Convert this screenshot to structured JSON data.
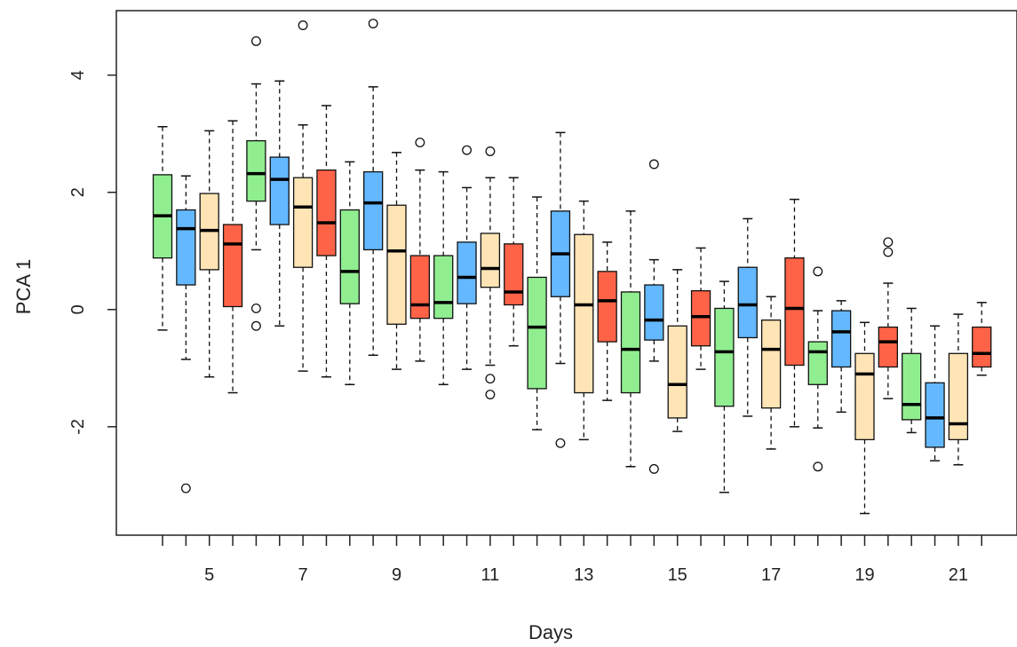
{
  "chart_data": {
    "type": "box",
    "xlabel": "Days",
    "ylabel": "PCA 1",
    "ylim": [
      -3.85,
      5.1
    ],
    "y_ticks": [
      -2,
      0,
      2,
      4
    ],
    "x_tick_labels": [
      "5",
      "7",
      "9",
      "11",
      "13",
      "15",
      "17",
      "19",
      "21"
    ],
    "x_label_positions": [
      2,
      6,
      10,
      14,
      18,
      22,
      26,
      30,
      34
    ],
    "grid": false,
    "legend": "none",
    "palette": {
      "green": "#90EE90",
      "blue": "#63B8FF",
      "wheat": "#FFE4B5",
      "red": "#FF6347"
    },
    "boxes": [
      {
        "color": "green",
        "whisker_low": -0.35,
        "q1": 0.88,
        "median": 1.6,
        "q3": 2.3,
        "whisker_high": 3.12,
        "outliers": []
      },
      {
        "color": "blue",
        "whisker_low": -0.85,
        "q1": 0.42,
        "median": 1.38,
        "q3": 1.7,
        "whisker_high": 2.28,
        "outliers": [
          -3.05
        ]
      },
      {
        "color": "wheat",
        "whisker_low": -1.15,
        "q1": 0.68,
        "median": 1.35,
        "q3": 1.98,
        "whisker_high": 3.05,
        "outliers": []
      },
      {
        "color": "red",
        "whisker_low": -1.42,
        "q1": 0.05,
        "median": 1.12,
        "q3": 1.45,
        "whisker_high": 3.22,
        "outliers": []
      },
      {
        "color": "green",
        "whisker_low": 1.02,
        "q1": 1.85,
        "median": 2.32,
        "q3": 2.88,
        "whisker_high": 3.85,
        "outliers": [
          4.58,
          0.02,
          -0.28
        ]
      },
      {
        "color": "blue",
        "whisker_low": -0.28,
        "q1": 1.45,
        "median": 2.22,
        "q3": 2.6,
        "whisker_high": 3.9,
        "outliers": []
      },
      {
        "color": "wheat",
        "whisker_low": -1.05,
        "q1": 0.72,
        "median": 1.75,
        "q3": 2.25,
        "whisker_high": 3.15,
        "outliers": [
          4.85
        ]
      },
      {
        "color": "red",
        "whisker_low": -1.15,
        "q1": 0.92,
        "median": 1.48,
        "q3": 2.38,
        "whisker_high": 3.48,
        "outliers": []
      },
      {
        "color": "green",
        "whisker_low": -1.28,
        "q1": 0.1,
        "median": 0.65,
        "q3": 1.7,
        "whisker_high": 2.52,
        "outliers": []
      },
      {
        "color": "blue",
        "whisker_low": -0.78,
        "q1": 1.02,
        "median": 1.82,
        "q3": 2.35,
        "whisker_high": 3.8,
        "outliers": [
          4.88
        ]
      },
      {
        "color": "wheat",
        "whisker_low": -1.02,
        "q1": -0.25,
        "median": 1.0,
        "q3": 1.78,
        "whisker_high": 2.68,
        "outliers": []
      },
      {
        "color": "red",
        "whisker_low": -0.88,
        "q1": -0.15,
        "median": 0.08,
        "q3": 0.92,
        "whisker_high": 2.38,
        "outliers": [
          2.85
        ]
      },
      {
        "color": "green",
        "whisker_low": -1.28,
        "q1": -0.15,
        "median": 0.12,
        "q3": 0.92,
        "whisker_high": 2.35,
        "outliers": []
      },
      {
        "color": "blue",
        "whisker_low": -1.02,
        "q1": 0.1,
        "median": 0.55,
        "q3": 1.15,
        "whisker_high": 2.08,
        "outliers": [
          2.72
        ]
      },
      {
        "color": "wheat",
        "whisker_low": -0.95,
        "q1": 0.38,
        "median": 0.7,
        "q3": 1.3,
        "whisker_high": 2.25,
        "outliers": [
          2.7,
          -1.18,
          -1.45
        ]
      },
      {
        "color": "red",
        "whisker_low": -0.62,
        "q1": 0.08,
        "median": 0.3,
        "q3": 1.12,
        "whisker_high": 2.25,
        "outliers": []
      },
      {
        "color": "green",
        "whisker_low": -2.05,
        "q1": -1.35,
        "median": -0.3,
        "q3": 0.55,
        "whisker_high": 1.92,
        "outliers": []
      },
      {
        "color": "blue",
        "whisker_low": -0.92,
        "q1": 0.22,
        "median": 0.95,
        "q3": 1.68,
        "whisker_high": 3.02,
        "outliers": [
          -2.28
        ]
      },
      {
        "color": "wheat",
        "whisker_low": -2.22,
        "q1": -1.42,
        "median": 0.08,
        "q3": 1.28,
        "whisker_high": 1.85,
        "outliers": []
      },
      {
        "color": "red",
        "whisker_low": -1.55,
        "q1": -0.55,
        "median": 0.15,
        "q3": 0.65,
        "whisker_high": 1.15,
        "outliers": []
      },
      {
        "color": "green",
        "whisker_low": -2.68,
        "q1": -1.42,
        "median": -0.68,
        "q3": 0.3,
        "whisker_high": 1.68,
        "outliers": []
      },
      {
        "color": "blue",
        "whisker_low": -0.88,
        "q1": -0.52,
        "median": -0.18,
        "q3": 0.42,
        "whisker_high": 0.85,
        "outliers": [
          2.48,
          -2.72
        ]
      },
      {
        "color": "wheat",
        "whisker_low": -2.08,
        "q1": -1.85,
        "median": -1.28,
        "q3": -0.28,
        "whisker_high": 0.68,
        "outliers": []
      },
      {
        "color": "red",
        "whisker_low": -1.02,
        "q1": -0.62,
        "median": -0.12,
        "q3": 0.32,
        "whisker_high": 1.05,
        "outliers": []
      },
      {
        "color": "green",
        "whisker_low": -3.12,
        "q1": -1.65,
        "median": -0.72,
        "q3": 0.02,
        "whisker_high": 0.48,
        "outliers": []
      },
      {
        "color": "blue",
        "whisker_low": -1.82,
        "q1": -0.48,
        "median": 0.08,
        "q3": 0.72,
        "whisker_high": 1.55,
        "outliers": []
      },
      {
        "color": "wheat",
        "whisker_low": -2.38,
        "q1": -1.68,
        "median": -0.68,
        "q3": -0.18,
        "whisker_high": 0.22,
        "outliers": []
      },
      {
        "color": "red",
        "whisker_low": -2.0,
        "q1": -0.95,
        "median": 0.02,
        "q3": 0.88,
        "whisker_high": 1.88,
        "outliers": []
      },
      {
        "color": "green",
        "whisker_low": -2.02,
        "q1": -1.28,
        "median": -0.72,
        "q3": -0.55,
        "whisker_high": -0.02,
        "outliers": [
          0.65,
          -2.68
        ]
      },
      {
        "color": "blue",
        "whisker_low": -1.75,
        "q1": -0.98,
        "median": -0.38,
        "q3": -0.02,
        "whisker_high": 0.15,
        "outliers": []
      },
      {
        "color": "wheat",
        "whisker_low": -3.48,
        "q1": -2.22,
        "median": -1.1,
        "q3": -0.75,
        "whisker_high": -0.22,
        "outliers": []
      },
      {
        "color": "red",
        "whisker_low": -1.52,
        "q1": -0.98,
        "median": -0.55,
        "q3": -0.3,
        "whisker_high": 0.45,
        "outliers": [
          1.15,
          0.98
        ]
      },
      {
        "color": "green",
        "whisker_low": -2.1,
        "q1": -1.88,
        "median": -1.62,
        "q3": -0.75,
        "whisker_high": 0.02,
        "outliers": []
      },
      {
        "color": "blue",
        "whisker_low": -2.58,
        "q1": -2.35,
        "median": -1.85,
        "q3": -1.25,
        "whisker_high": -0.28,
        "outliers": []
      },
      {
        "color": "wheat",
        "whisker_low": -2.65,
        "q1": -2.22,
        "median": -1.95,
        "q3": -0.75,
        "whisker_high": -0.08,
        "outliers": []
      },
      {
        "color": "red",
        "whisker_low": -1.12,
        "q1": -0.98,
        "median": -0.75,
        "q3": -0.3,
        "whisker_high": 0.12,
        "outliers": []
      }
    ]
  }
}
